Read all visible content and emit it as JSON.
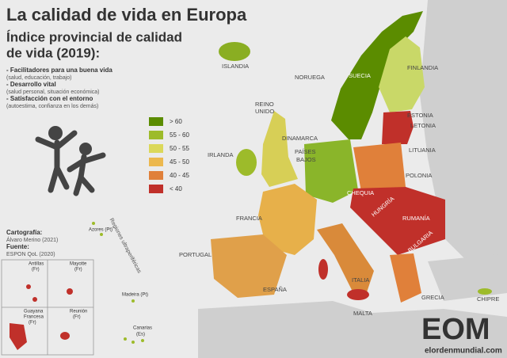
{
  "title": "La calidad de vida en Europa",
  "subtitle": [
    "Índice provincial de calidad",
    "de vida (2019):"
  ],
  "components": [
    {
      "name": "- Facilitadores para una buena vida",
      "detail": "(salud, educación, trabajo)"
    },
    {
      "name": "- Desarrollo vital",
      "detail": "(salud personal, situación económica)"
    },
    {
      "name": "- Satisfacción con el entorno",
      "detail": "(autoestima, confianza en los demás)"
    }
  ],
  "legend": [
    {
      "label": "> 60",
      "color": "#5b8c00"
    },
    {
      "label": "55 - 60",
      "color": "#9dbb2a"
    },
    {
      "label": "50 - 55",
      "color": "#dbd85a"
    },
    {
      "label": "45 - 50",
      "color": "#ecb84e"
    },
    {
      "label": "40 - 45",
      "color": "#e0803a"
    },
    {
      "label": "< 40",
      "color": "#c0302a"
    }
  ],
  "countries": {
    "islandia": "ISLANDIA",
    "noruega": "NORUEGA",
    "suecia": "SUECIA",
    "finlandia": "FINLANDIA",
    "estonia": "ESTONIA",
    "letonia": "LETONIA",
    "lituania": "LITUANIA",
    "reino_unido": [
      "REINO",
      "UNIDO"
    ],
    "irlanda": "IRLANDA",
    "dinamarca": "DINAMARCA",
    "paises_bajos": [
      "PAÍSES",
      "BAJOS"
    ],
    "polonia": "POLONIA",
    "chequia": "CHEQUIA",
    "hungria": "HUNGRÍA",
    "rumania": "RUMANÍA",
    "bulgaria": "BULGARIA",
    "francia": "FRANCIA",
    "portugal": "PORTUGAL",
    "espana": "ESPAÑA",
    "italia": "ITALIA",
    "malta": "MALTA",
    "grecia": "GRECIA",
    "chipre": "CHIPRE"
  },
  "outermost": {
    "title": "Regiones ultraperiféricas",
    "azores": "Azores (Pt)",
    "madeira": "Madeira (Pt)",
    "canarias": [
      "Canarias",
      "(Es)"
    ]
  },
  "credits": {
    "cartography_label": "Cartografía:",
    "cartography": "Álvaro Merino (2021)",
    "source_label": "Fuente:",
    "source": "ESPON QoL (2020)"
  },
  "insets": {
    "antillas": [
      "Antillas",
      "(Fr)"
    ],
    "mayotte": [
      "Mayotte",
      "(Fr)"
    ],
    "guayana": [
      "Guayana",
      "Francesa",
      "(Fr)"
    ],
    "reunion": [
      "Reunión",
      "(Fr)"
    ]
  },
  "logo": {
    "mark": "EOM",
    "site": "elordenmundial.com"
  }
}
